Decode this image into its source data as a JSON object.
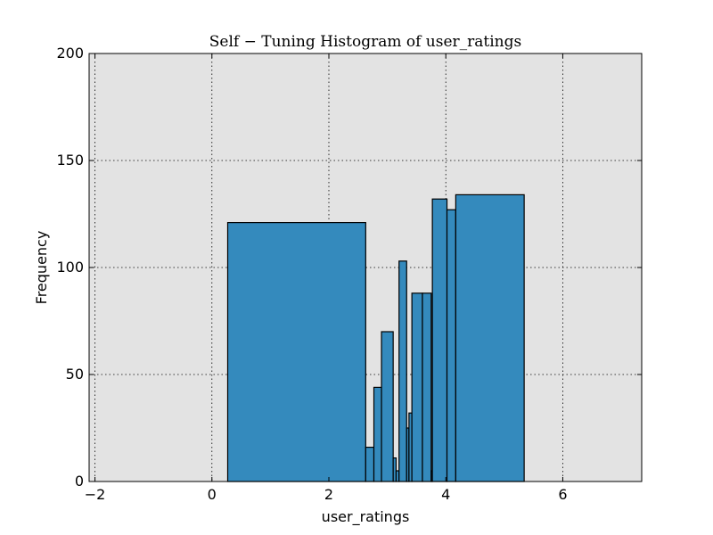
{
  "chart_data": {
    "type": "bar",
    "title": "Self − Tuning Histogram of user_ratings",
    "xlabel": "user_ratings",
    "ylabel": "Frequency",
    "xlim": [
      -2.1,
      7.35
    ],
    "ylim": [
      0,
      200
    ],
    "x_ticks": [
      -2,
      0,
      2,
      4,
      6
    ],
    "y_ticks": [
      0,
      50,
      100,
      150,
      200
    ],
    "grid": true,
    "background_color": "#e3e3e3",
    "bar_color": "#348abd",
    "bins": [
      {
        "left": 0.27,
        "right": 2.63,
        "count": 121
      },
      {
        "left": 2.63,
        "right": 2.77,
        "count": 16
      },
      {
        "left": 2.77,
        "right": 2.9,
        "count": 44
      },
      {
        "left": 2.9,
        "right": 3.1,
        "count": 70
      },
      {
        "left": 3.1,
        "right": 3.15,
        "count": 11
      },
      {
        "left": 3.15,
        "right": 3.2,
        "count": 5
      },
      {
        "left": 3.2,
        "right": 3.33,
        "count": 103
      },
      {
        "left": 3.33,
        "right": 3.37,
        "count": 25
      },
      {
        "left": 3.37,
        "right": 3.42,
        "count": 32
      },
      {
        "left": 3.42,
        "right": 3.6,
        "count": 88
      },
      {
        "left": 3.6,
        "right": 3.75,
        "count": 88
      },
      {
        "left": 3.75,
        "right": 3.77,
        "count": 5
      },
      {
        "left": 3.77,
        "right": 4.02,
        "count": 132
      },
      {
        "left": 4.02,
        "right": 4.17,
        "count": 127
      },
      {
        "left": 4.17,
        "right": 5.34,
        "count": 134
      }
    ]
  }
}
